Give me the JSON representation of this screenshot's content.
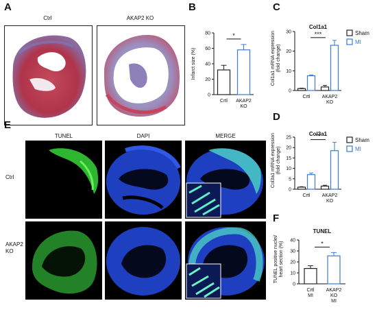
{
  "panels": {
    "A": {
      "letter": "A",
      "image_labels": [
        "Ctrl",
        "AKAP2 KO"
      ]
    },
    "E": {
      "letter": "E",
      "column_headers": [
        "TUNEL",
        "DAPI",
        "MERGE"
      ],
      "row_labels": [
        "Ctrl",
        "AKAP2\nKO"
      ]
    }
  },
  "chart_data": [
    {
      "id": "B",
      "type": "bar",
      "letter": "B",
      "title": "",
      "ylabel": "Infarct size (%)",
      "ylim": [
        0,
        80
      ],
      "yticks": [
        0,
        20,
        40,
        60,
        80
      ],
      "categories": [
        "Crtl",
        "AKAP2\nKO"
      ],
      "values": [
        32,
        58
      ],
      "errors": [
        6,
        7
      ],
      "bar_colors": [
        "#222222",
        "#3a78d6"
      ],
      "significance": [
        {
          "between": [
            0,
            1
          ],
          "label": "*"
        }
      ]
    },
    {
      "id": "C",
      "type": "bar",
      "letter": "C",
      "title": "Col1a1",
      "ylabel": "Col1a1 mRNA expression\n(fold change)",
      "ylim": [
        0,
        30
      ],
      "yticks": [
        0,
        10,
        20,
        30
      ],
      "categories": [
        "Crtl",
        "AKAP2\nKO"
      ],
      "series": [
        {
          "name": "Sham",
          "color": "#222222",
          "values": [
            1.0,
            1.8
          ],
          "errors": [
            0.2,
            0.8
          ]
        },
        {
          "name": "MI",
          "color": "#3a78d6",
          "values": [
            7.5,
            23.0
          ],
          "errors": [
            0.4,
            2.5
          ]
        }
      ],
      "significance": [
        {
          "label": "***"
        }
      ]
    },
    {
      "id": "D",
      "type": "bar",
      "letter": "D",
      "title": "Col3a1",
      "ylabel": "Col3a1 mRNA expression\n(fold change)",
      "ylim": [
        0,
        25
      ],
      "yticks": [
        0,
        5,
        10,
        15,
        20,
        25
      ],
      "categories": [
        "Crtl",
        "AKAP2\nKO"
      ],
      "series": [
        {
          "name": "Sham",
          "color": "#222222",
          "values": [
            1.0,
            1.5
          ],
          "errors": [
            0.2,
            0.4
          ]
        },
        {
          "name": "MI",
          "color": "#3a78d6",
          "values": [
            7.0,
            18.5
          ],
          "errors": [
            0.8,
            4.0
          ]
        }
      ],
      "significance": [
        {
          "label": "**"
        }
      ]
    },
    {
      "id": "F",
      "type": "bar",
      "letter": "F",
      "title": "TUNEL",
      "ylabel": "TUNEL positive nuclei/\nheart section (%)",
      "ylim": [
        0,
        40
      ],
      "yticks": [
        0,
        10,
        20,
        30,
        40
      ],
      "categories": [
        "Crtl\nMI",
        "AKAP2\nKO\nMI"
      ],
      "values": [
        14,
        25.5
      ],
      "errors": [
        2.5,
        3.0
      ],
      "bar_colors": [
        "#222222",
        "#3a78d6"
      ],
      "significance": [
        {
          "between": [
            0,
            1
          ],
          "label": "*"
        }
      ]
    }
  ]
}
